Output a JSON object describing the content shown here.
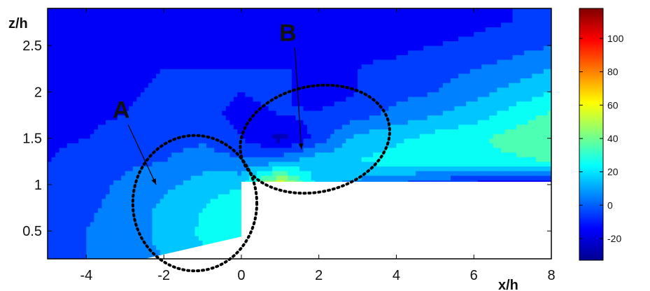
{
  "chart_data": {
    "type": "heatmap",
    "title": "",
    "xlabel": "x/h",
    "ylabel": "z/h",
    "xlim": [
      -5,
      8
    ],
    "ylim": [
      0.2,
      2.9
    ],
    "x_ticks": [
      -4,
      -2,
      0,
      2,
      4,
      6,
      8
    ],
    "y_ticks": [
      0.5,
      1,
      1.5,
      2,
      2.5
    ],
    "colorbar": {
      "range": [
        -33,
        118
      ],
      "ticks": [
        -20,
        0,
        20,
        40,
        60,
        80,
        100
      ],
      "colormap": "jet"
    },
    "obstacle": {
      "description": "blank (white) region",
      "outline": [
        [
          0,
          0.44
        ],
        [
          0,
          1.03
        ],
        [
          8,
          1.03
        ],
        [
          8,
          0.2
        ],
        [
          -2.5,
          0.2
        ]
      ]
    },
    "field_grid": {
      "x": [
        -5,
        -4,
        -3,
        -2,
        -1,
        0,
        1,
        2,
        3,
        4,
        5,
        6,
        7,
        8
      ],
      "z": [
        0.25,
        0.5,
        0.75,
        1.0,
        1.25,
        1.5,
        1.75,
        2.0,
        2.25,
        2.5,
        2.75
      ],
      "values": [
        [
          -2,
          0,
          8,
          10,
          18,
          24,
          20,
          14,
          10,
          8,
          8,
          8,
          8,
          8
        ],
        [
          -2,
          0,
          6,
          12,
          22,
          28,
          22,
          16,
          12,
          10,
          10,
          10,
          10,
          10
        ],
        [
          -4,
          -2,
          4,
          12,
          20,
          30,
          25,
          20,
          14,
          12,
          12,
          12,
          12,
          12
        ],
        [
          -6,
          -4,
          2,
          8,
          14,
          18,
          60,
          14,
          6,
          0,
          -10,
          -14,
          -16,
          -16
        ],
        [
          -10,
          -6,
          -2,
          0,
          6,
          2,
          8,
          18,
          20,
          24,
          26,
          28,
          28,
          30
        ],
        [
          -12,
          -10,
          -6,
          -4,
          -2,
          -10,
          -24,
          -6,
          14,
          18,
          24,
          28,
          34,
          40
        ],
        [
          -14,
          -12,
          -10,
          -6,
          -8,
          -12,
          -10,
          -8,
          -4,
          4,
          10,
          16,
          24,
          32
        ],
        [
          -16,
          -14,
          -12,
          -8,
          -8,
          -10,
          -8,
          -16,
          -10,
          -4,
          0,
          6,
          14,
          20
        ],
        [
          -16,
          -16,
          -14,
          -10,
          -10,
          -10,
          -10,
          -10,
          -10,
          -8,
          -4,
          0,
          4,
          10
        ],
        [
          -16,
          -16,
          -14,
          -12,
          -12,
          -12,
          -12,
          -12,
          -12,
          -12,
          -10,
          -8,
          -4,
          0
        ],
        [
          -16,
          -16,
          -14,
          -14,
          -14,
          -14,
          -14,
          -14,
          -14,
          -14,
          -14,
          -12,
          -10,
          -8
        ]
      ]
    },
    "annotations": [
      {
        "label": "A",
        "text_at": [
          -3.1,
          1.72
        ],
        "arrow_to": [
          -2.2,
          1.0
        ]
      },
      {
        "label": "B",
        "text_at": [
          1.2,
          2.55
        ],
        "arrow_to": [
          1.55,
          1.38
        ]
      }
    ],
    "ellipses": [
      {
        "center": [
          -1.2,
          0.8
        ],
        "radius_x": 3.2,
        "radius_z": 0.73,
        "style": "dotted"
      },
      {
        "center": [
          1.9,
          1.49
        ],
        "radius_x": 3.9,
        "radius_z": 0.57,
        "angle_deg": -12,
        "style": "dotted"
      }
    ]
  }
}
